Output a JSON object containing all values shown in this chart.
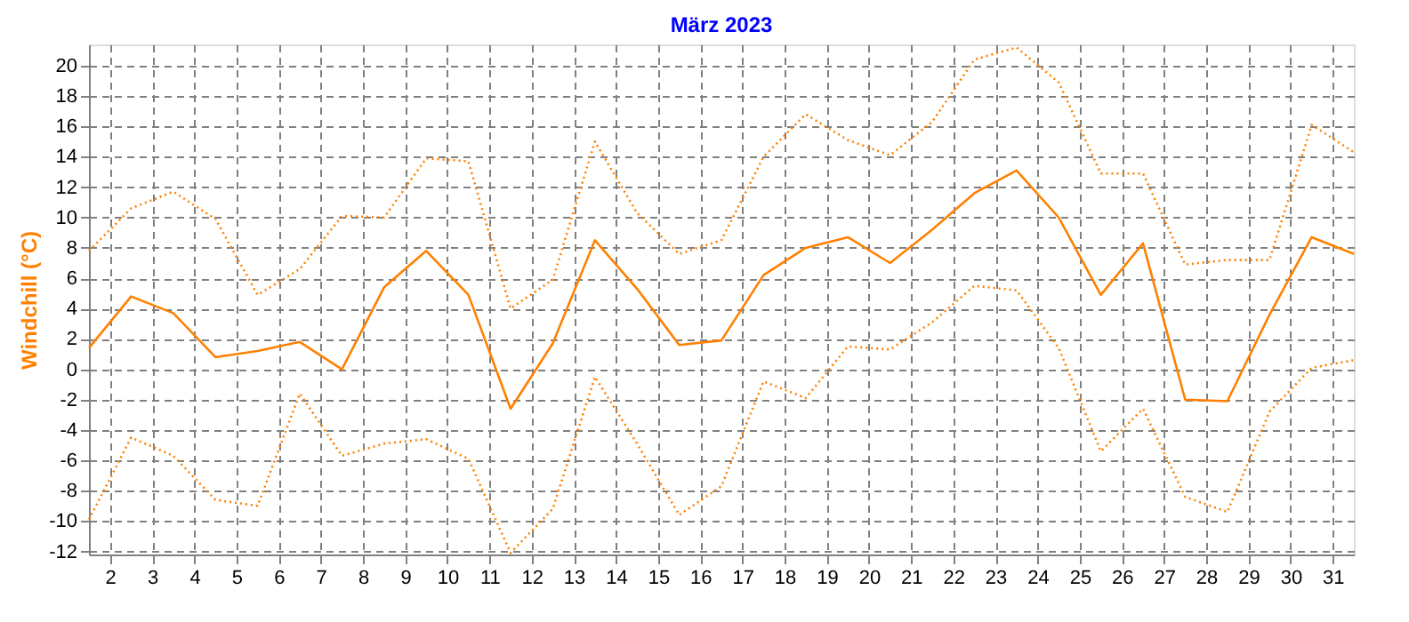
{
  "chart_data": {
    "type": "line",
    "title": "März 2023",
    "ylabel": "Windchill  (°C)",
    "x": [
      1.5,
      2.5,
      3.5,
      4.5,
      5.5,
      6.5,
      7.5,
      8.5,
      9.5,
      10.5,
      11.5,
      12.5,
      13.5,
      14.5,
      15.5,
      16.5,
      17.5,
      18.5,
      19.5,
      20.5,
      21.5,
      22.5,
      23.5,
      24.5,
      25.5,
      26.5,
      27.5,
      28.5,
      29.5,
      30.5,
      31.5
    ],
    "series": [
      {
        "color": "#ff8000",
        "line_style": "dotted",
        "values": [
          7.8,
          10.6,
          11.7,
          9.9,
          4.9,
          6.6,
          10.1,
          10.0,
          13.9,
          13.7,
          4.0,
          5.9,
          15.0,
          10.3,
          7.6,
          8.5,
          14.0,
          16.8,
          15.1,
          14.1,
          16.3,
          20.4,
          21.2,
          18.9,
          12.9,
          12.9,
          6.9,
          7.2,
          7.2,
          16.1,
          14.3
        ]
      },
      {
        "color": "#ff8000",
        "line_style": "solid",
        "values": [
          1.4,
          4.8,
          3.7,
          0.8,
          1.2,
          1.8,
          0.0,
          5.4,
          7.8,
          4.9,
          -2.6,
          1.7,
          8.5,
          5.3,
          1.6,
          1.9,
          6.2,
          8.0,
          8.7,
          7.0,
          9.2,
          11.6,
          13.1,
          10.0,
          4.9,
          8.3,
          -2.0,
          -2.1,
          3.6,
          8.7,
          7.6
        ]
      },
      {
        "color": "#ff8000",
        "line_style": "dotted",
        "values": [
          -9.9,
          -4.5,
          -5.7,
          -8.6,
          -9.0,
          -1.6,
          -5.7,
          -4.9,
          -4.6,
          -5.9,
          -12.1,
          -9.2,
          -0.5,
          -4.9,
          -9.6,
          -7.7,
          -0.8,
          -1.9,
          1.5,
          1.3,
          3.1,
          5.5,
          5.2,
          1.4,
          -5.4,
          -2.6,
          -8.4,
          -9.4,
          -2.8,
          0.1,
          0.6
        ]
      }
    ],
    "xlim": [
      1.5,
      31.5
    ],
    "xticks": [
      2,
      3,
      4,
      5,
      6,
      7,
      8,
      9,
      10,
      11,
      12,
      13,
      14,
      15,
      16,
      17,
      18,
      19,
      20,
      21,
      22,
      23,
      24,
      25,
      26,
      27,
      28,
      29,
      30,
      31
    ],
    "ylim": [
      -12.2,
      21.4
    ],
    "yticks": [
      -12,
      -10,
      -8,
      -6,
      -4,
      -2,
      0,
      2,
      4,
      6,
      8,
      10,
      12,
      14,
      16,
      18,
      20
    ],
    "grid": true,
    "legend": false,
    "marker": "none"
  }
}
